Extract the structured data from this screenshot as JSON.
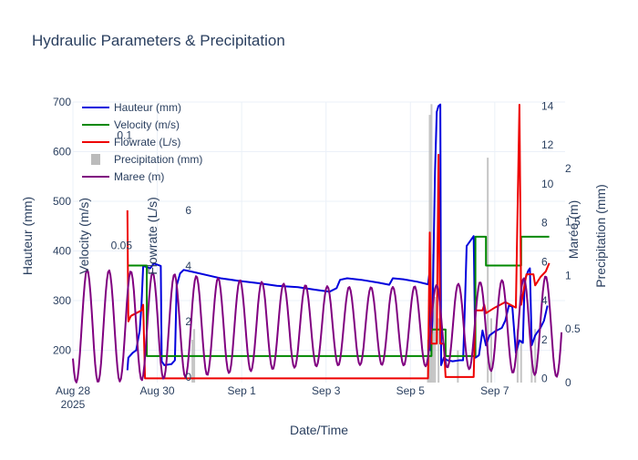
{
  "chart_data": {
    "type": "line",
    "title": "Hydraulic Parameters & Precipitation",
    "xlabel": "Date/Time",
    "x_ticks": [
      {
        "x": "2025-08-28",
        "label": "Aug 28",
        "sublabel": "2025"
      },
      {
        "x": "2025-08-30",
        "label": "Aug 30"
      },
      {
        "x": "2025-09-01",
        "label": "Sep 1"
      },
      {
        "x": "2025-09-03",
        "label": "Sep 3"
      },
      {
        "x": "2025-09-05",
        "label": "Sep 5"
      },
      {
        "x": "2025-09-07",
        "label": "Sep 7"
      }
    ],
    "xlim": [
      "2025-08-28T00:00",
      "2025-09-08T16:00"
    ],
    "legend_position": "top-left",
    "grid": true,
    "axes": {
      "hauteur": {
        "label": "Hauteur (mm)",
        "ylim": [
          135,
          700
        ],
        "ticks": [
          200,
          300,
          400,
          500,
          600,
          700
        ],
        "color": "#2a3f5f"
      },
      "velocity": {
        "label": "Velocity (m/s)",
        "ylim": [
          -0.012,
          0.115
        ],
        "ticks": [
          {
            "v": 0.05,
            "label": "0.05"
          },
          {
            "v": 0.1,
            "label": "0.1"
          }
        ]
      },
      "flowrate": {
        "label": "Flowrate (L/s)",
        "ylim": [
          -0.2,
          9.9
        ],
        "ticks": [
          0,
          2,
          4,
          6
        ]
      },
      "maree": {
        "label": "Marée (m)",
        "ylim": [
          -0.2,
          14.2
        ],
        "ticks": [
          0,
          2,
          4,
          6,
          8,
          10,
          12,
          14
        ]
      },
      "precipitation": {
        "label": "Precipitation (mm)",
        "ylim": [
          0,
          2.62
        ],
        "ticks": [
          {
            "v": 0,
            "label": "0"
          },
          {
            "v": 0.5,
            "label": "0.5"
          },
          {
            "v": 1,
            "label": "1"
          },
          {
            "v": 1.5,
            "label": "1.5"
          },
          {
            "v": 2,
            "label": "2"
          }
        ]
      }
    },
    "series": [
      {
        "name": "Hauteur (mm)",
        "axis": "hauteur",
        "color": "#0000dd",
        "kind": "line",
        "points": [
          [
            "2025-08-29T07:00",
            160
          ],
          [
            "2025-08-29T07:30",
            185
          ],
          [
            "2025-08-29T10:00",
            195
          ],
          [
            "2025-08-29T12:00",
            200
          ],
          [
            "2025-08-29T14:00",
            240
          ],
          [
            "2025-08-29T15:00",
            290
          ],
          [
            "2025-08-29T16:00",
            370
          ],
          [
            "2025-08-29T20:00",
            365
          ],
          [
            "2025-08-29T22:00",
            375
          ],
          [
            "2025-08-30T02:00",
            370
          ],
          [
            "2025-08-30T02:30",
            178
          ],
          [
            "2025-08-30T04:00",
            170
          ],
          [
            "2025-08-30T08:00",
            172
          ],
          [
            "2025-08-30T10:00",
            180
          ],
          [
            "2025-08-30T11:00",
            330
          ],
          [
            "2025-08-30T13:00",
            355
          ],
          [
            "2025-08-30T15:00",
            362
          ],
          [
            "2025-08-30T20:00",
            358
          ],
          [
            "2025-08-31T06:00",
            350
          ],
          [
            "2025-08-31T12:00",
            345
          ],
          [
            "2025-08-31T22:00",
            340
          ],
          [
            "2025-09-01T10:00",
            335
          ],
          [
            "2025-09-01T20:00",
            330
          ],
          [
            "2025-09-02T08:00",
            327
          ],
          [
            "2025-09-02T18:00",
            322
          ],
          [
            "2025-09-03T02:00",
            318
          ],
          [
            "2025-09-03T06:00",
            325
          ],
          [
            "2025-09-03T08:00",
            342
          ],
          [
            "2025-09-03T12:00",
            345
          ],
          [
            "2025-09-03T20:00",
            342
          ],
          [
            "2025-09-04T06:00",
            336
          ],
          [
            "2025-09-04T12:00",
            332
          ],
          [
            "2025-09-04T14:00",
            345
          ],
          [
            "2025-09-04T20:00",
            343
          ],
          [
            "2025-09-05T04:00",
            338
          ],
          [
            "2025-09-05T10:00",
            333
          ],
          [
            "2025-09-05T11:00",
            360
          ],
          [
            "2025-09-05T11:30",
            200
          ],
          [
            "2025-09-05T12:30",
            260
          ],
          [
            "2025-09-05T14:00",
            560
          ],
          [
            "2025-09-05T15:00",
            680
          ],
          [
            "2025-09-05T16:00",
            692
          ],
          [
            "2025-09-05T17:00",
            695
          ],
          [
            "2025-09-05T17:30",
            170
          ],
          [
            "2025-09-05T19:00",
            185
          ],
          [
            "2025-09-05T21:00",
            180
          ],
          [
            "2025-09-06T00:00",
            178
          ],
          [
            "2025-09-06T04:00",
            180
          ],
          [
            "2025-09-06T06:00",
            180
          ],
          [
            "2025-09-06T07:00",
            290
          ],
          [
            "2025-09-06T08:00",
            410
          ],
          [
            "2025-09-06T10:00",
            420
          ],
          [
            "2025-09-06T12:00",
            430
          ],
          [
            "2025-09-06T13:00",
            185
          ],
          [
            "2025-09-06T15:00",
            190
          ],
          [
            "2025-09-06T17:00",
            240
          ],
          [
            "2025-09-06T19:00",
            210
          ],
          [
            "2025-09-06T21:00",
            230
          ],
          [
            "2025-09-07T00:00",
            238
          ],
          [
            "2025-09-07T04:00",
            245
          ],
          [
            "2025-09-07T06:00",
            260
          ],
          [
            "2025-09-07T08:00",
            290
          ],
          [
            "2025-09-07T10:00",
            288
          ],
          [
            "2025-09-07T12:00",
            195
          ],
          [
            "2025-09-07T14:00",
            220
          ],
          [
            "2025-09-07T16:00",
            215
          ],
          [
            "2025-09-07T17:00",
            340
          ],
          [
            "2025-09-07T19:00",
            360
          ],
          [
            "2025-09-07T20:00",
            365
          ],
          [
            "2025-09-07T21:00",
            210
          ],
          [
            "2025-09-07T23:00",
            230
          ],
          [
            "2025-09-08T02:00",
            245
          ],
          [
            "2025-09-08T04:00",
            260
          ],
          [
            "2025-09-08T06:00",
            290
          ]
        ]
      },
      {
        "name": "Velocity (m/s)",
        "axis": "velocity",
        "color": "#008800",
        "kind": "step",
        "points": [
          [
            "2025-08-29T07:00",
            0.041
          ],
          [
            "2025-08-29T16:00",
            0.041
          ],
          [
            "2025-08-29T18:00",
            0.0
          ],
          [
            "2025-09-05T10:00",
            0.0
          ],
          [
            "2025-09-05T12:00",
            0.012
          ],
          [
            "2025-09-05T19:00",
            0.012
          ],
          [
            "2025-09-05T20:00",
            0.0
          ],
          [
            "2025-09-06T12:00",
            0.0
          ],
          [
            "2025-09-06T13:00",
            0.054
          ],
          [
            "2025-09-06T18:00",
            0.054
          ],
          [
            "2025-09-06T19:00",
            0.041
          ],
          [
            "2025-09-07T12:00",
            0.041
          ],
          [
            "2025-09-07T14:00",
            0.041
          ],
          [
            "2025-09-07T15:00",
            0.054
          ],
          [
            "2025-09-08T07:00",
            0.054
          ]
        ]
      },
      {
        "name": "Flowrate (L/s)",
        "axis": "flowrate",
        "color": "#ee0000",
        "kind": "line",
        "points": [
          [
            "2025-08-29T07:00",
            6.0
          ],
          [
            "2025-08-29T07:30",
            2.0
          ],
          [
            "2025-08-29T09:00",
            2.2
          ],
          [
            "2025-08-29T12:00",
            2.3
          ],
          [
            "2025-08-29T15:00",
            2.4
          ],
          [
            "2025-08-29T16:00",
            2.6
          ],
          [
            "2025-08-29T17:00",
            -0.05
          ],
          [
            "2025-09-05T10:00",
            -0.05
          ],
          [
            "2025-09-05T11:00",
            5.2
          ],
          [
            "2025-09-05T12:00",
            1.2
          ],
          [
            "2025-09-05T15:00",
            1.2
          ],
          [
            "2025-09-05T16:00",
            8.0
          ],
          [
            "2025-09-05T17:00",
            1.2
          ],
          [
            "2025-09-05T19:00",
            1.2
          ],
          [
            "2025-09-05T20:00",
            0.0
          ],
          [
            "2025-09-06T12:00",
            0.0
          ],
          [
            "2025-09-06T13:00",
            2.4
          ],
          [
            "2025-09-06T17:00",
            2.4
          ],
          [
            "2025-09-06T18:00",
            2.6
          ],
          [
            "2025-09-06T19:00",
            2.3
          ],
          [
            "2025-09-07T00:00",
            2.5
          ],
          [
            "2025-09-07T06:00",
            2.7
          ],
          [
            "2025-09-07T12:00",
            2.5
          ],
          [
            "2025-09-07T14:00",
            9.8
          ],
          [
            "2025-09-07T15:00",
            2.6
          ],
          [
            "2025-09-07T18:00",
            3.7
          ],
          [
            "2025-09-07T22:00",
            3.7
          ],
          [
            "2025-09-07T23:00",
            3.3
          ],
          [
            "2025-09-08T02:00",
            3.6
          ],
          [
            "2025-09-08T05:00",
            3.8
          ],
          [
            "2025-09-08T07:00",
            4.1
          ]
        ]
      },
      {
        "name": "Precipitation (mm)",
        "axis": "precipitation",
        "color": "#bbbbbb",
        "kind": "bar",
        "points": [
          [
            "2025-08-30T20:00",
            0.4
          ],
          [
            "2025-08-30T21:00",
            0.5
          ],
          [
            "2025-09-05T10:00",
            0.4
          ],
          [
            "2025-09-05T11:00",
            2.5
          ],
          [
            "2025-09-05T12:00",
            2.6
          ],
          [
            "2025-09-05T13:00",
            1.2
          ],
          [
            "2025-09-05T14:00",
            0.8
          ],
          [
            "2025-09-05T16:00",
            0.6
          ],
          [
            "2025-09-06T03:00",
            0.3
          ],
          [
            "2025-09-06T20:00",
            2.1
          ],
          [
            "2025-09-06T22:00",
            0.6
          ],
          [
            "2025-09-07T13:00",
            0.5
          ],
          [
            "2025-09-07T15:00",
            0.4
          ],
          [
            "2025-09-07T21:00",
            0.3
          ],
          [
            "2025-09-07T23:00",
            0.5
          ]
        ]
      },
      {
        "name": "Maree (m)",
        "axis": "maree",
        "color": "#800080",
        "kind": "line",
        "generator": "tide",
        "tide": {
          "start": "2025-08-28T00:00",
          "end": "2025-09-08T14:00",
          "period_hours": 12.42,
          "phase_hours": 5.0,
          "mean": 2.7,
          "amp_min": 2.0,
          "amp_max": 2.9,
          "mod_period_hours": 340
        }
      }
    ]
  }
}
